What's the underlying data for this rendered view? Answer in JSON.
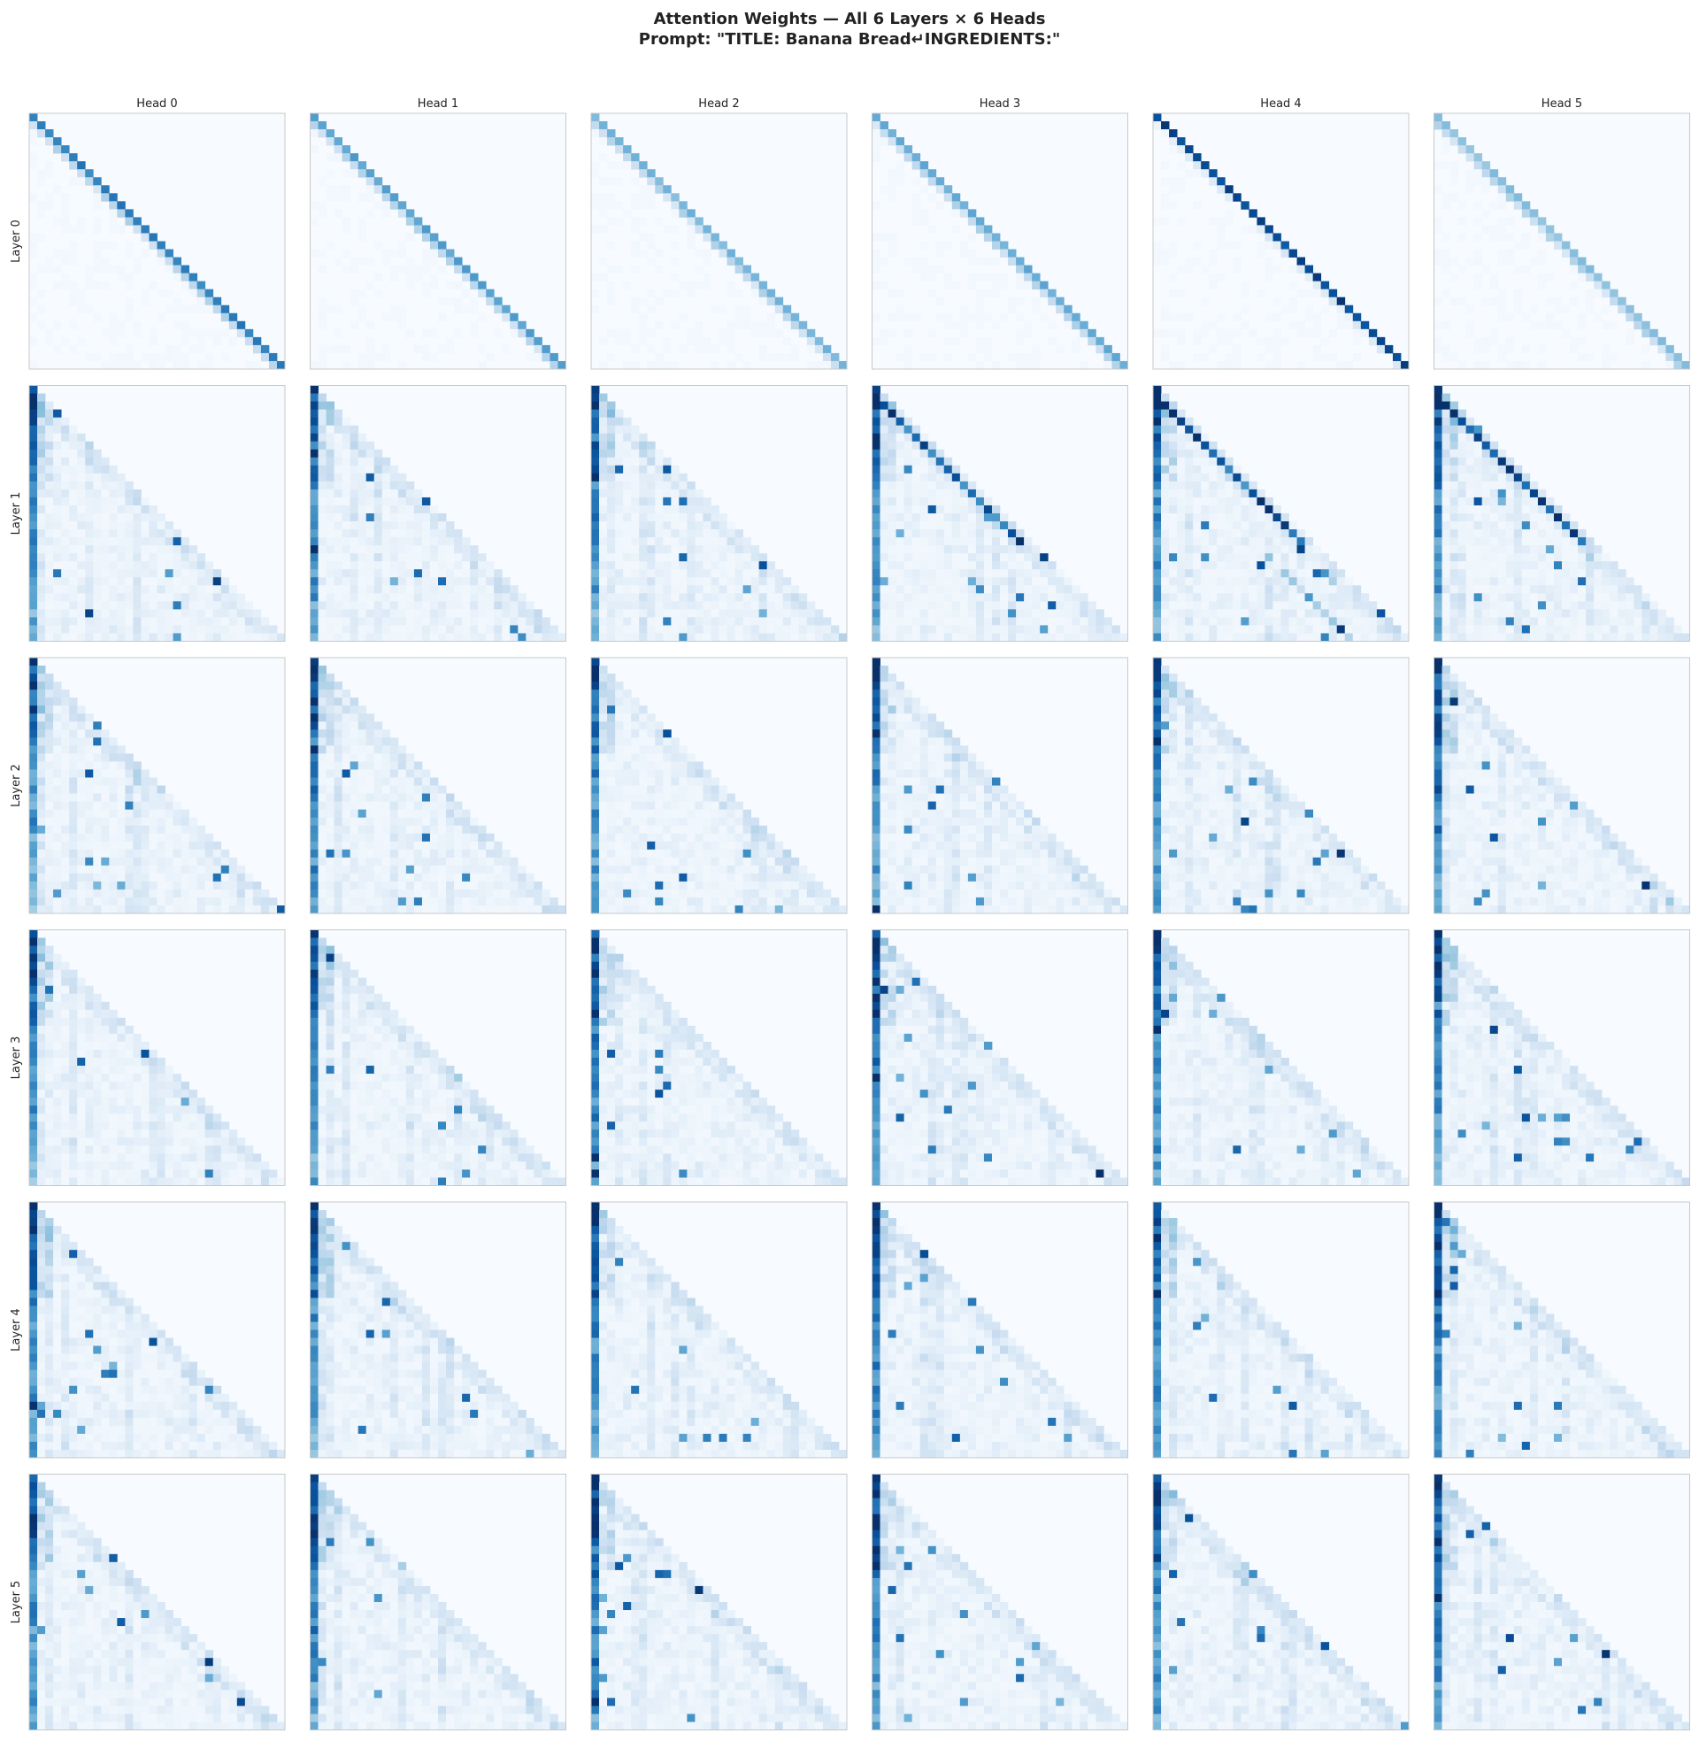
{
  "chart_data": {
    "type": "heatmap",
    "title": "Attention Weights — All 6 Layers × 6 Heads",
    "subtitle": "Prompt: \"TITLE: Banana Bread↵INGREDIENTS:\"",
    "column_labels": [
      "Head 0",
      "Head 1",
      "Head 2",
      "Head 3",
      "Head 4",
      "Head 5"
    ],
    "row_labels": [
      "Layer 0",
      "Layer 1",
      "Layer 2",
      "Layer 3",
      "Layer 4",
      "Layer 5"
    ],
    "matrix_size": 32,
    "colormap": "Blues",
    "value_range": [
      0,
      1
    ],
    "mask": "causal (lower-triangular)",
    "axis_ticks": "none",
    "panel_data_note_values": [
      [
        {
          "diagonal_weight": 0.75
        },
        {
          "diagonal_weight": 0.6
        },
        {
          "diagonal_weight": 0.5
        },
        {
          "diagonal_weight": 0.55
        },
        {
          "diagonal_weight": 0.98
        },
        {
          "diagonal_weight": 0.45
        }
      ]
    ]
  }
}
